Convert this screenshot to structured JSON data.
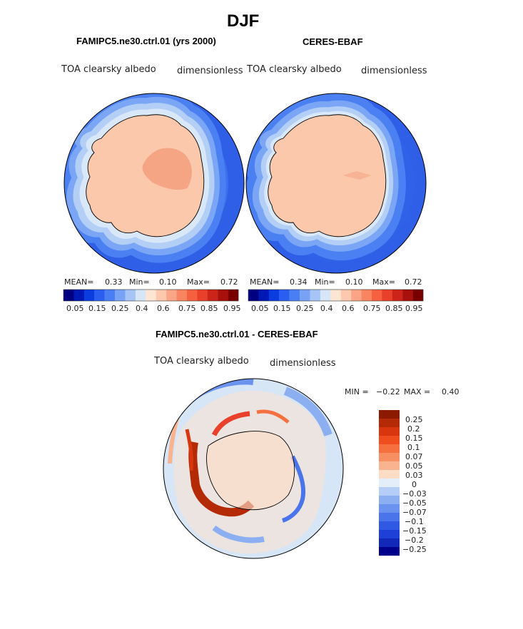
{
  "page": {
    "season": "DJF"
  },
  "panels": [
    {
      "id": "model",
      "title": "FAMIPC5.ne30.ctrl.01 (yrs 2000)",
      "variable": "TOA clearsky albedo",
      "units": "dimensionless",
      "stats": {
        "mean_label": "MEAN=",
        "mean": "0.33",
        "min_label": "Min=",
        "min": "0.10",
        "max_label": "Max=",
        "max": "0.72"
      }
    },
    {
      "id": "obs",
      "title": "CERES-EBAF",
      "variable": "TOA clearsky albedo",
      "units": "dimensionless",
      "stats": {
        "mean_label": "MEAN=",
        "mean": "0.34",
        "min_label": "Min=",
        "min": "0.10",
        "max_label": "Max=",
        "max": "0.72"
      }
    }
  ],
  "colorbar_top": {
    "colors": [
      "#000080",
      "#0018b4",
      "#0a3ce0",
      "#2a5ef0",
      "#4a7ef5",
      "#78a2f5",
      "#a6c4f5",
      "#d6e6f7",
      "#fde5d4",
      "#fcc8ae",
      "#fba587",
      "#f98460",
      "#f5603e",
      "#e8402a",
      "#cc2418",
      "#a8100c",
      "#7a0000"
    ],
    "tick_labels": [
      "0.05",
      "0.15",
      "0.25",
      "0.4",
      "0.6",
      "0.75",
      "0.85",
      "0.95"
    ]
  },
  "difference": {
    "title": "FAMIPC5.ne30.ctrl.01 - CERES-EBAF",
    "variable": "TOA clearsky albedo",
    "units": "dimensionless",
    "min_label": "MIN =",
    "min": "−0.22",
    "max_label": "MAX =",
    "max": "0.40",
    "colorbar": {
      "colors": [
        "#8b1a00",
        "#b52a06",
        "#d8360e",
        "#f04d1e",
        "#f5703e",
        "#f78f62",
        "#f9b48f",
        "#fcdcc4",
        "#e4eefa",
        "#b4cef7",
        "#8caff2",
        "#6a92ef",
        "#4a74ea",
        "#2f58e3",
        "#1e40d6",
        "#1128b8",
        "#00008a"
      ],
      "labels": [
        "0.25",
        "0.2",
        "0.15",
        "0.1",
        "0.07",
        "0.05",
        "0.03",
        "0",
        "−0.03",
        "−0.05",
        "−0.07",
        "−0.1",
        "−0.15",
        "−0.2",
        "−0.25"
      ]
    }
  }
}
